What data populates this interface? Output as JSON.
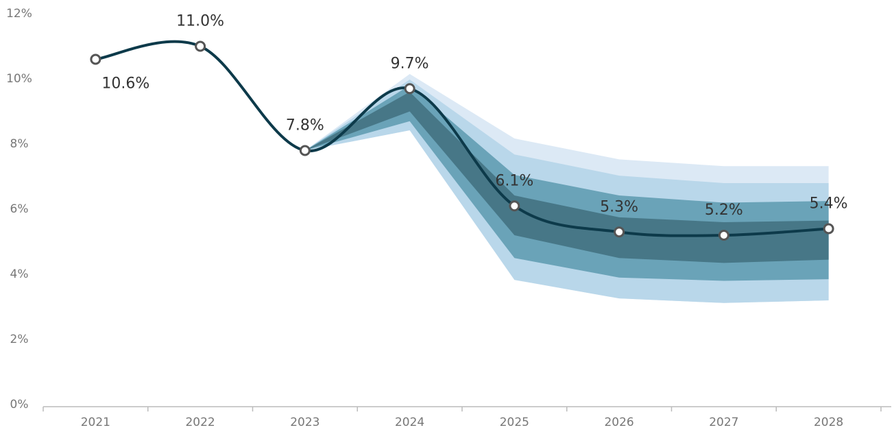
{
  "chart_data": {
    "type": "line",
    "categories": [
      "2021",
      "2022",
      "2023",
      "2024",
      "2025",
      "2026",
      "2027",
      "2028"
    ],
    "series": [
      {
        "color": "#0d3a4a",
        "values": [
          10.6,
          11.0,
          7.8,
          9.7,
          6.1,
          5.3,
          5.2,
          5.4
        ],
        "value_labels": [
          "10.6%",
          "11.0%",
          "7.8%",
          "9.7%",
          "6.1%",
          "5.3%",
          "5.2%",
          "5.4%"
        ]
      }
    ],
    "fan": [
      {
        "color": "#dce9f5",
        "upper": [
          null,
          null,
          7.8,
          10.15,
          8.17,
          7.53,
          7.32,
          7.32
        ],
        "lower": [
          null,
          null,
          7.8,
          8.42,
          3.83,
          3.26,
          3.12,
          3.2
        ]
      },
      {
        "color": "#b9d7ea",
        "upper": [
          null,
          null,
          7.8,
          9.98,
          7.68,
          7.03,
          6.8,
          6.8
        ],
        "lower": [
          null,
          null,
          7.8,
          8.42,
          3.83,
          3.26,
          3.12,
          3.2
        ]
      },
      {
        "color": "#6aa3b8",
        "upper": [
          null,
          null,
          7.8,
          9.8,
          7.05,
          6.42,
          6.2,
          6.25
        ],
        "lower": [
          null,
          null,
          7.8,
          8.7,
          4.5,
          3.9,
          3.8,
          3.85
        ]
      },
      {
        "color": "#477787",
        "upper": [
          null,
          null,
          7.8,
          9.6,
          6.42,
          5.75,
          5.6,
          5.65
        ],
        "lower": [
          null,
          null,
          7.8,
          9.0,
          5.2,
          4.5,
          4.35,
          4.45
        ]
      }
    ],
    "ylim": [
      0,
      12
    ],
    "yticks": [
      {
        "value": 0,
        "label": "0%"
      },
      {
        "value": 2,
        "label": "2%"
      },
      {
        "value": 4,
        "label": "4%"
      },
      {
        "value": 6,
        "label": "6%"
      },
      {
        "value": 8,
        "label": "8%"
      },
      {
        "value": 10,
        "label": "10%"
      },
      {
        "value": 12,
        "label": "12%"
      }
    ],
    "grid": false
  }
}
